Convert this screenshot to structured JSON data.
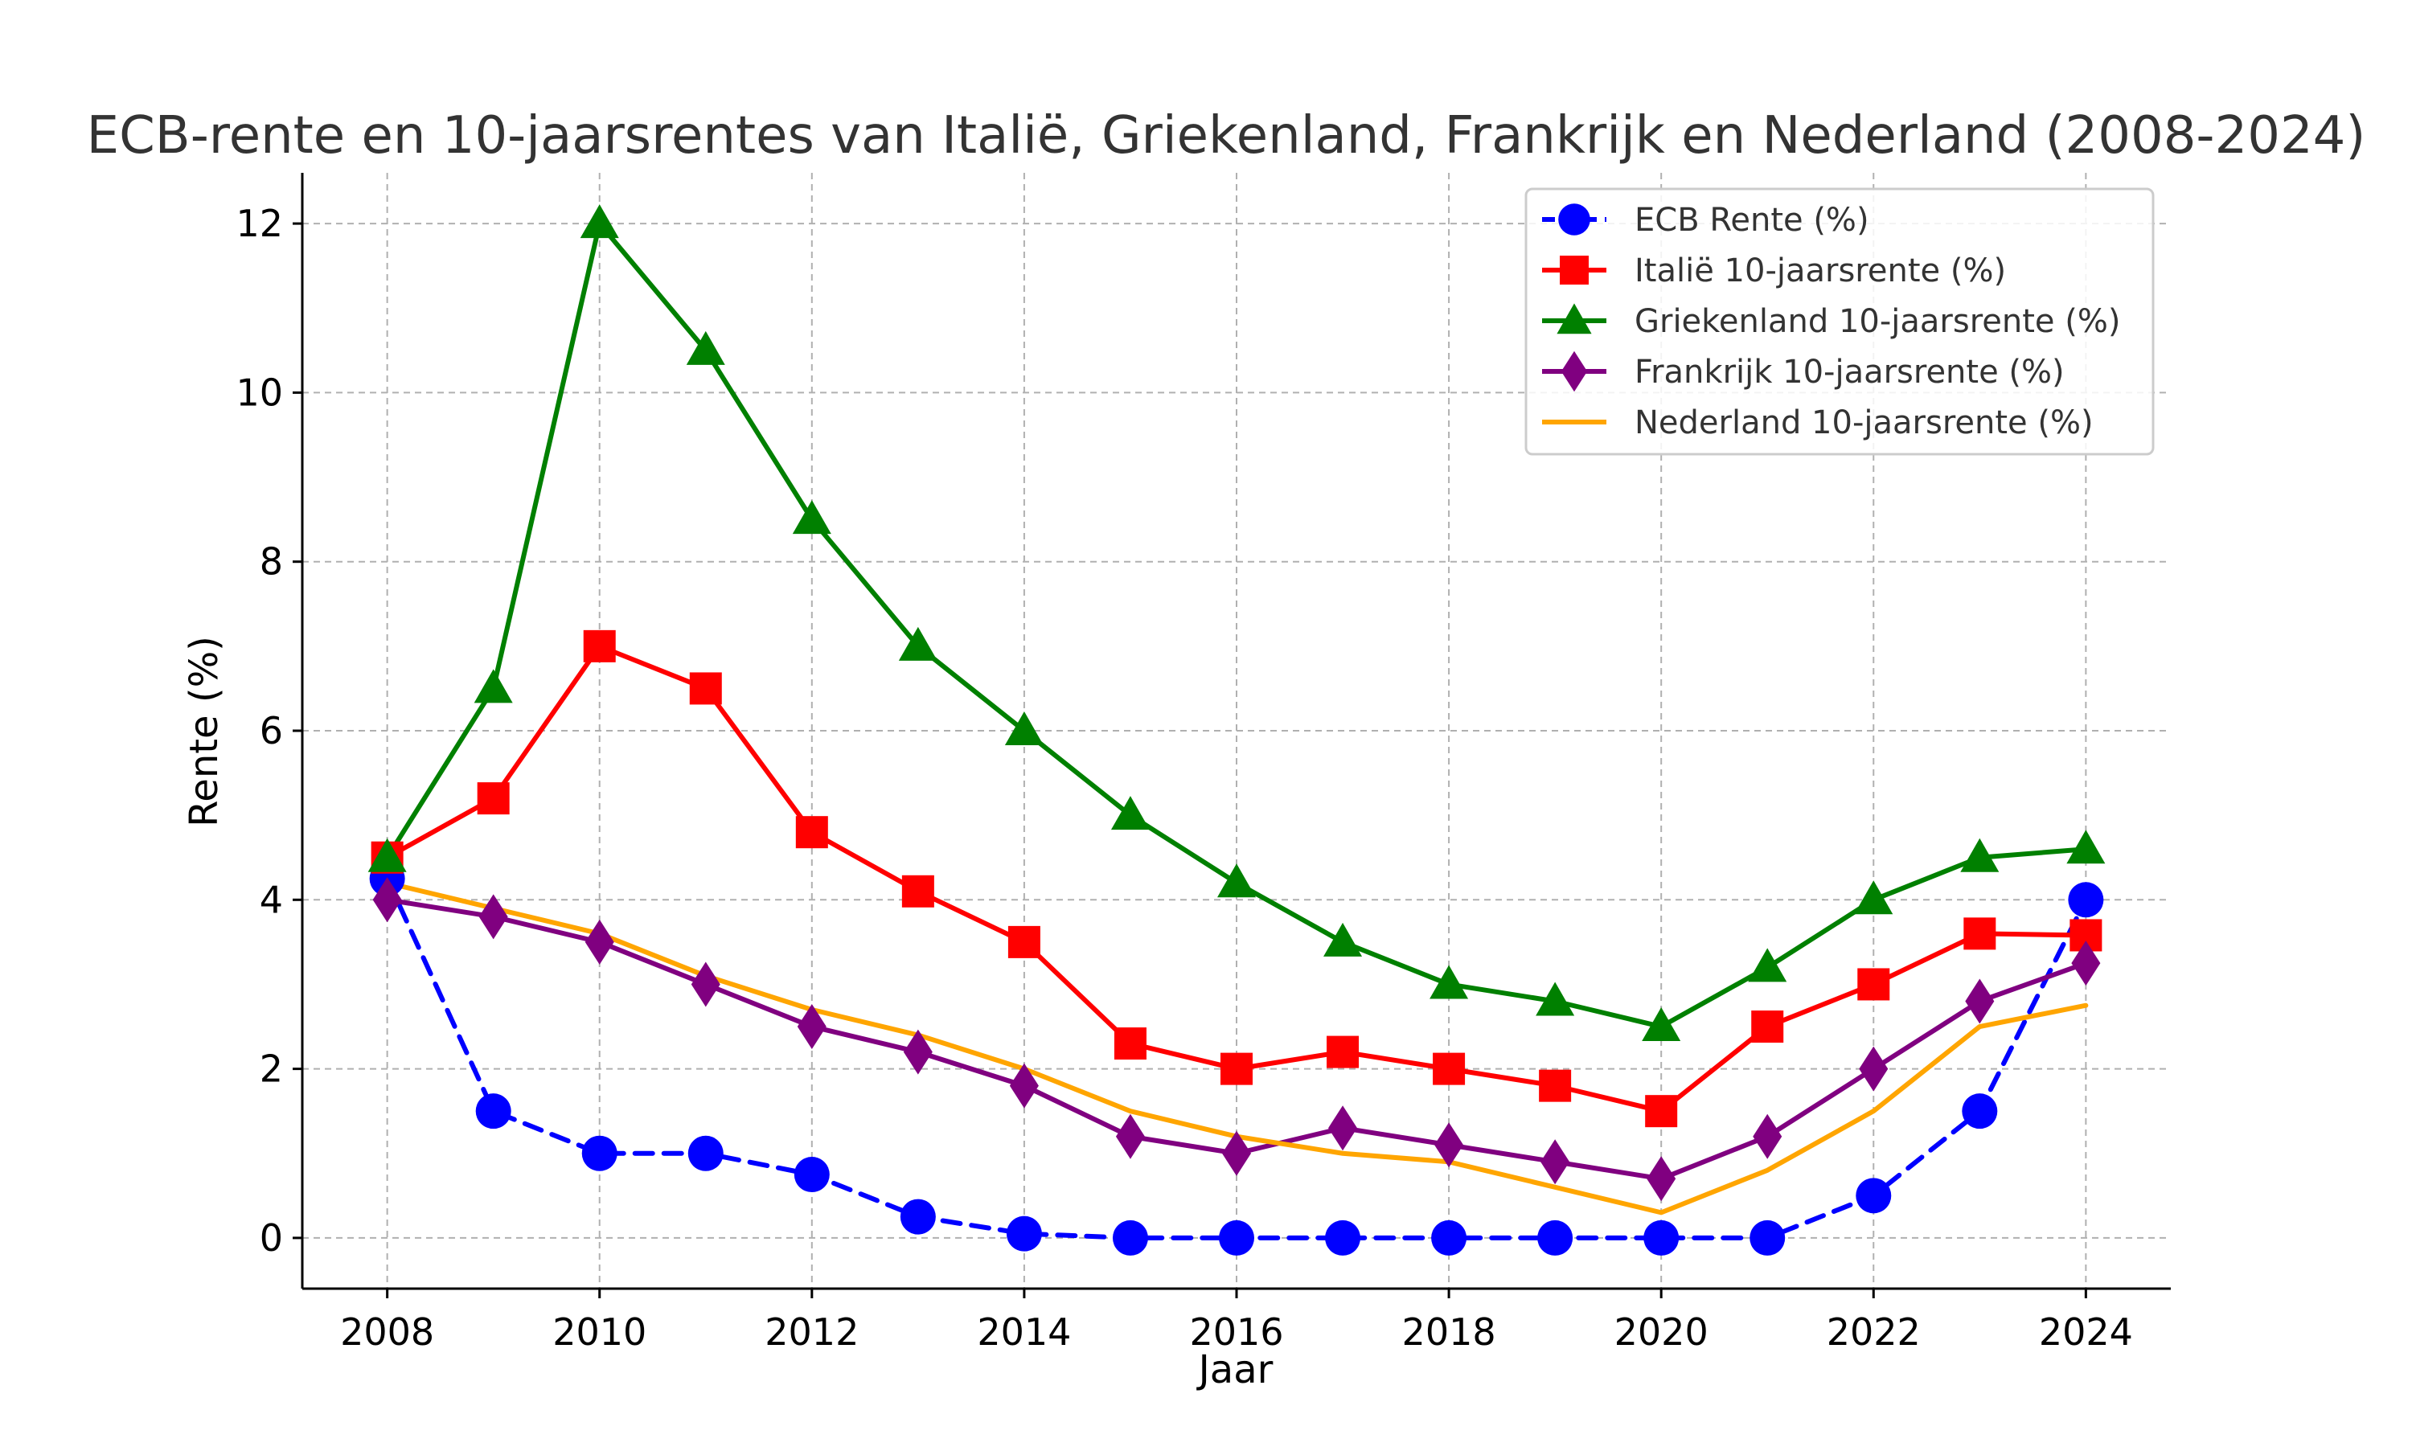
{
  "chart_data": {
    "type": "line",
    "title": "ECB-rente en 10-jaarsrentes van Italië, Griekenland, Frankrijk en Nederland (2008-2024)",
    "xlabel": "Jaar",
    "ylabel": "Rente (%)",
    "x": [
      2008,
      2009,
      2010,
      2011,
      2012,
      2013,
      2014,
      2015,
      2016,
      2017,
      2018,
      2019,
      2020,
      2021,
      2022,
      2023,
      2024
    ],
    "xlim": [
      2007.2,
      2024.8
    ],
    "ylim": [
      -0.6,
      12.6
    ],
    "xticks": [
      "2008",
      "2010",
      "2012",
      "2014",
      "2016",
      "2018",
      "2020",
      "2022",
      "2024"
    ],
    "yticks": [
      "0",
      "2",
      "4",
      "6",
      "8",
      "10",
      "12"
    ],
    "grid": true,
    "legend_position": "top-right",
    "series": [
      {
        "name": "ECB Rente (%)",
        "color": "#0000ff",
        "marker": "circle",
        "dashed": true,
        "values": [
          4.25,
          1.5,
          1.0,
          1.0,
          0.75,
          0.25,
          0.05,
          0.0,
          0.0,
          0.0,
          0.0,
          0.0,
          0.0,
          0.0,
          0.5,
          1.5,
          4.0
        ]
      },
      {
        "name": "Italië 10-jaarsrente (%)",
        "color": "#ff0000",
        "marker": "square",
        "dashed": false,
        "values": [
          4.5,
          5.2,
          7.0,
          6.5,
          4.8,
          4.1,
          3.5,
          2.3,
          2.0,
          2.2,
          2.0,
          1.8,
          1.5,
          2.5,
          3.0,
          3.6,
          3.58
        ]
      },
      {
        "name": "Griekenland 10-jaarsrente (%)",
        "color": "#008000",
        "marker": "triangle",
        "dashed": false,
        "values": [
          4.5,
          6.5,
          12.0,
          10.5,
          8.5,
          7.0,
          6.0,
          5.0,
          4.2,
          3.5,
          3.0,
          2.8,
          2.5,
          3.2,
          4.0,
          4.5,
          4.6
        ]
      },
      {
        "name": "Frankrijk 10-jaarsrente (%)",
        "color": "#800080",
        "marker": "diamond",
        "dashed": false,
        "values": [
          4.0,
          3.8,
          3.5,
          3.0,
          2.5,
          2.2,
          1.8,
          1.2,
          1.0,
          1.3,
          1.1,
          0.9,
          0.7,
          1.2,
          2.0,
          2.8,
          3.25
        ]
      },
      {
        "name": "Nederland 10-jaarsrente (%)",
        "color": "#ffa500",
        "marker": "none",
        "dashed": false,
        "values": [
          4.2,
          3.9,
          3.6,
          3.1,
          2.7,
          2.4,
          2.0,
          1.5,
          1.2,
          1.0,
          0.9,
          0.6,
          0.3,
          0.8,
          1.5,
          2.5,
          2.75
        ]
      }
    ]
  }
}
